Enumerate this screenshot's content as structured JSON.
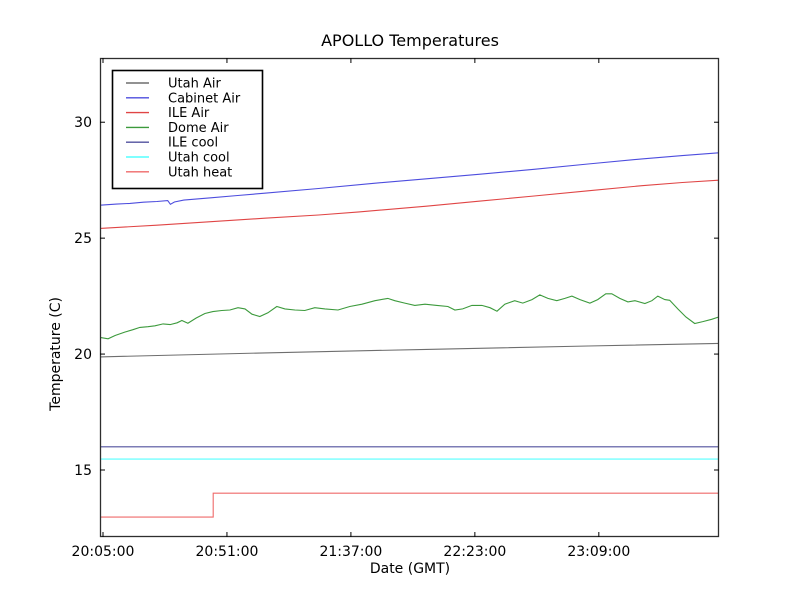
{
  "figure": {
    "background": "#ffffff",
    "plot_border_color": "#2e2e2e",
    "text_color": "#000000"
  },
  "chart_data": {
    "type": "line",
    "title": "APOLLO Temperatures",
    "xlabel": "Date (GMT)",
    "ylabel": "Temperature (C)",
    "x_unit": "minutes since 20:05:00",
    "xlim": [
      -1.11,
      228.6
    ],
    "ylim": [
      12.11,
      32.77
    ],
    "grid": false,
    "legend_position": "upper-left",
    "xticks": [
      {
        "t": 0,
        "label": "20:05:00"
      },
      {
        "t": 46,
        "label": "20:51:00"
      },
      {
        "t": 92,
        "label": "21:37:00"
      },
      {
        "t": 138,
        "label": "22:23:00"
      },
      {
        "t": 184,
        "label": "23:09:00"
      }
    ],
    "yticks": [
      {
        "v": 15,
        "label": "15"
      },
      {
        "v": 20,
        "label": "20"
      },
      {
        "v": 25,
        "label": "25"
      },
      {
        "v": 30,
        "label": "30"
      }
    ],
    "series": [
      {
        "name": "Utah Air",
        "color": "#6e6e6e",
        "points": [
          [
            -1.1,
            19.88
          ],
          [
            60,
            20.05
          ],
          [
            120,
            20.2
          ],
          [
            180,
            20.35
          ],
          [
            228.5,
            20.46
          ]
        ]
      },
      {
        "name": "Cabinet Air",
        "color": "#4d4dde",
        "points": [
          [
            -1.1,
            26.42
          ],
          [
            5,
            26.47
          ],
          [
            10,
            26.5
          ],
          [
            15,
            26.55
          ],
          [
            20,
            26.58
          ],
          [
            24,
            26.62
          ],
          [
            25,
            26.46
          ],
          [
            26.5,
            26.56
          ],
          [
            30,
            26.64
          ],
          [
            40,
            26.74
          ],
          [
            50,
            26.84
          ],
          [
            60,
            26.94
          ],
          [
            80,
            27.14
          ],
          [
            100,
            27.36
          ],
          [
            120,
            27.56
          ],
          [
            140,
            27.76
          ],
          [
            160,
            27.97
          ],
          [
            180,
            28.2
          ],
          [
            200,
            28.42
          ],
          [
            215,
            28.56
          ],
          [
            228.5,
            28.68
          ]
        ]
      },
      {
        "name": "ILE Air",
        "color": "#e04545",
        "points": [
          [
            -1.1,
            25.42
          ],
          [
            20,
            25.56
          ],
          [
            40,
            25.71
          ],
          [
            60,
            25.86
          ],
          [
            80,
            26.0
          ],
          [
            95,
            26.13
          ],
          [
            120,
            26.38
          ],
          [
            140,
            26.6
          ],
          [
            160,
            26.82
          ],
          [
            180,
            27.04
          ],
          [
            200,
            27.26
          ],
          [
            215,
            27.4
          ],
          [
            228.5,
            27.5
          ]
        ]
      },
      {
        "name": "Dome Air",
        "color": "#3c9a3c",
        "points": [
          [
            -1.1,
            20.72
          ],
          [
            1.9,
            20.66
          ],
          [
            4.5,
            20.8
          ],
          [
            8.2,
            20.95
          ],
          [
            11.1,
            21.05
          ],
          [
            13.7,
            21.15
          ],
          [
            16.7,
            21.18
          ],
          [
            19.3,
            21.22
          ],
          [
            22.3,
            21.3
          ],
          [
            24.9,
            21.27
          ],
          [
            27.5,
            21.35
          ],
          [
            29.3,
            21.45
          ],
          [
            31.5,
            21.33
          ],
          [
            34.5,
            21.55
          ],
          [
            37.8,
            21.75
          ],
          [
            40.8,
            21.83
          ],
          [
            44.1,
            21.88
          ],
          [
            47.1,
            21.9
          ],
          [
            50.1,
            22.0
          ],
          [
            52.7,
            21.95
          ],
          [
            55.3,
            21.72
          ],
          [
            58.2,
            21.62
          ],
          [
            61.2,
            21.78
          ],
          [
            64.5,
            22.05
          ],
          [
            67.5,
            21.95
          ],
          [
            71.2,
            21.9
          ],
          [
            74.9,
            21.88
          ],
          [
            78.6,
            22.0
          ],
          [
            82.4,
            21.95
          ],
          [
            87.2,
            21.9
          ],
          [
            91.6,
            22.05
          ],
          [
            96.1,
            22.15
          ],
          [
            100.9,
            22.3
          ],
          [
            105.7,
            22.4
          ],
          [
            108.3,
            22.3
          ],
          [
            112.0,
            22.2
          ],
          [
            115.7,
            22.1
          ],
          [
            119.5,
            22.15
          ],
          [
            123.9,
            22.1
          ],
          [
            128.0,
            22.05
          ],
          [
            130.6,
            21.9
          ],
          [
            133.5,
            21.95
          ],
          [
            136.9,
            22.1
          ],
          [
            140.6,
            22.1
          ],
          [
            143.6,
            22.0
          ],
          [
            146.2,
            21.85
          ],
          [
            149.1,
            22.15
          ],
          [
            152.8,
            22.3
          ],
          [
            155.8,
            22.2
          ],
          [
            159.2,
            22.35
          ],
          [
            162.1,
            22.55
          ],
          [
            165.1,
            22.4
          ],
          [
            168.4,
            22.3
          ],
          [
            171.4,
            22.4
          ],
          [
            174.0,
            22.5
          ],
          [
            177.0,
            22.35
          ],
          [
            180.7,
            22.2
          ],
          [
            183.6,
            22.35
          ],
          [
            186.6,
            22.6
          ],
          [
            188.8,
            22.6
          ],
          [
            191.8,
            22.4
          ],
          [
            194.8,
            22.25
          ],
          [
            197.4,
            22.3
          ],
          [
            201.1,
            22.18
          ],
          [
            203.7,
            22.3
          ],
          [
            205.9,
            22.5
          ],
          [
            208.5,
            22.35
          ],
          [
            210.3,
            22.32
          ],
          [
            213.3,
            21.95
          ],
          [
            216.3,
            21.6
          ],
          [
            219.6,
            21.32
          ],
          [
            222.6,
            21.4
          ],
          [
            225.9,
            21.5
          ],
          [
            228.5,
            21.6
          ]
        ]
      },
      {
        "name": "ILE cool",
        "color": "#50509e",
        "points": [
          [
            -1.1,
            16.0
          ],
          [
            228.5,
            16.0
          ]
        ]
      },
      {
        "name": "Utah cool",
        "color": "#55ffff",
        "points": [
          [
            -1.1,
            15.47
          ],
          [
            228.5,
            15.47
          ]
        ]
      },
      {
        "name": "Utah heat",
        "color": "#ef6a6a",
        "points": [
          [
            -1.1,
            12.97
          ],
          [
            40.9,
            12.97
          ],
          [
            40.9,
            14.0
          ],
          [
            228.5,
            14.0
          ]
        ]
      }
    ]
  }
}
